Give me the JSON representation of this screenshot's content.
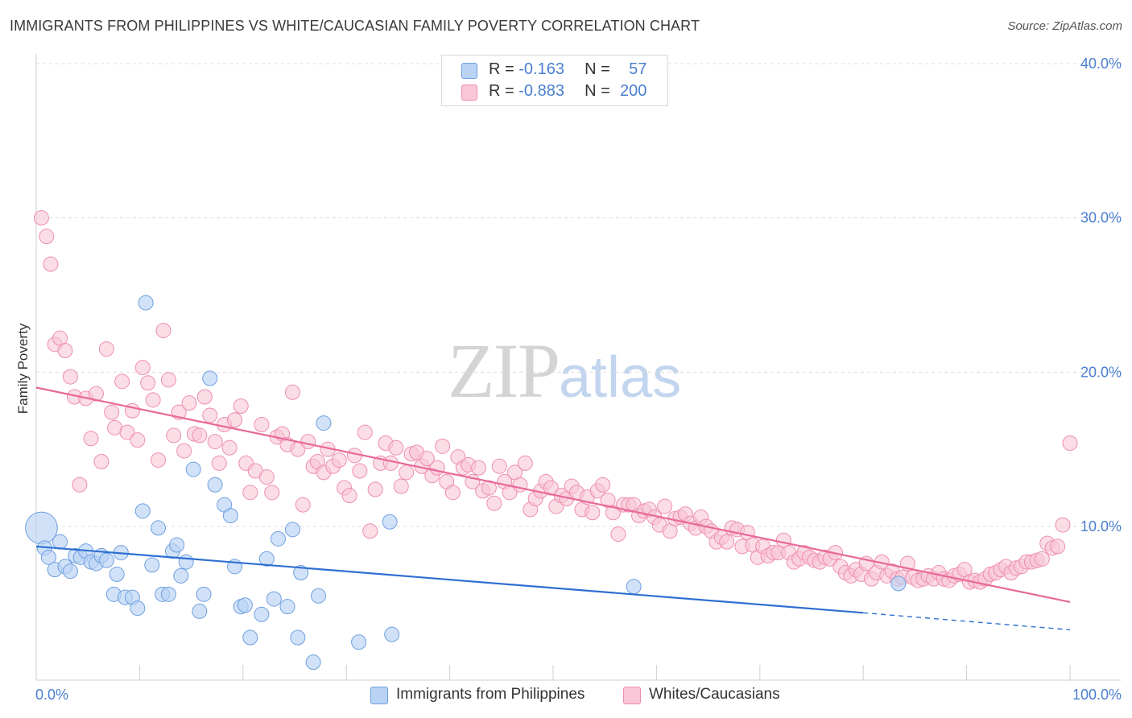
{
  "header": {
    "title": "IMMIGRANTS FROM PHILIPPINES VS WHITE/CAUCASIAN FAMILY POVERTY CORRELATION CHART",
    "source": "Source: ZipAtlas.com"
  },
  "watermark": {
    "zip": "ZIP",
    "atlas": "atlas"
  },
  "legend": {
    "series1": {
      "r_label": "R = ",
      "r_value": "-0.163",
      "n_label": "N = ",
      "n_value": "57"
    },
    "series2": {
      "r_label": "R = ",
      "r_value": "-0.883",
      "n_label": "N = ",
      "n_value": "200"
    }
  },
  "bottom_legend": {
    "series1": "Immigrants from Philippines",
    "series2": "Whites/Caucasians"
  },
  "colors": {
    "blue_fill": "#b9d3f5",
    "blue_stroke": "#6e9fe0",
    "blue_line": "#2f6fd1",
    "pink_fill": "#f8c6d6",
    "pink_stroke": "#ee8eae",
    "pink_line": "#e8699a",
    "tick": "#4a7fd0",
    "grid": "#dcdcdc"
  },
  "chart_data": {
    "type": "scatter",
    "title": "IMMIGRANTS FROM PHILIPPINES VS WHITE/CAUCASIAN FAMILY POVERTY CORRELATION CHART",
    "xlabel": "",
    "ylabel": "Family Poverty",
    "xlim": [
      0,
      100
    ],
    "ylim": [
      0,
      40
    ],
    "x_tick_labels": [
      "0.0%",
      "100.0%"
    ],
    "y_ticks": [
      10,
      20,
      30,
      40
    ],
    "y_tick_labels": [
      "10.0%",
      "20.0%",
      "30.0%",
      "40.0%"
    ],
    "legend_position": "top-center",
    "series": [
      {
        "name": "Immigrants from Philippines",
        "r": -0.163,
        "n": 57,
        "trend": {
          "x0": 0,
          "y0": 8.7,
          "x1": 80,
          "y1": 4.4,
          "dashed_to_x": 100,
          "dashed_to_y": 3.3
        },
        "points": [
          [
            0.5,
            9.9,
            2.2
          ],
          [
            0.8,
            8.6,
            1
          ],
          [
            1.2,
            8.0,
            1
          ],
          [
            1.8,
            7.2,
            1
          ],
          [
            2.3,
            9.0,
            1
          ],
          [
            2.8,
            7.4,
            1
          ],
          [
            3.3,
            7.1,
            1
          ],
          [
            3.8,
            8.1,
            1
          ],
          [
            4.3,
            8.0,
            1
          ],
          [
            4.8,
            8.4,
            1
          ],
          [
            5.3,
            7.7,
            1
          ],
          [
            5.8,
            7.6,
            1
          ],
          [
            6.3,
            8.1,
            1
          ],
          [
            6.8,
            7.8,
            1
          ],
          [
            7.5,
            5.6,
            1
          ],
          [
            7.8,
            6.9,
            1
          ],
          [
            8.2,
            8.3,
            1
          ],
          [
            8.6,
            5.4,
            1
          ],
          [
            9.3,
            5.4,
            1
          ],
          [
            9.8,
            4.7,
            1
          ],
          [
            10.3,
            11.0,
            1
          ],
          [
            10.6,
            24.5,
            1
          ],
          [
            11.2,
            7.5,
            1
          ],
          [
            11.8,
            9.9,
            1
          ],
          [
            12.2,
            5.6,
            1
          ],
          [
            12.8,
            5.6,
            1
          ],
          [
            13.2,
            8.4,
            1
          ],
          [
            13.6,
            8.8,
            1
          ],
          [
            14.0,
            6.8,
            1
          ],
          [
            14.5,
            7.7,
            1
          ],
          [
            15.2,
            13.7,
            1
          ],
          [
            15.8,
            4.5,
            1
          ],
          [
            16.2,
            5.6,
            1
          ],
          [
            16.8,
            19.6,
            1
          ],
          [
            17.3,
            12.7,
            1
          ],
          [
            18.2,
            11.4,
            1
          ],
          [
            18.8,
            10.7,
            1
          ],
          [
            19.2,
            7.4,
            1
          ],
          [
            19.8,
            4.8,
            1
          ],
          [
            20.2,
            4.9,
            1
          ],
          [
            20.7,
            2.8,
            1
          ],
          [
            21.8,
            4.3,
            1
          ],
          [
            22.3,
            7.9,
            1
          ],
          [
            23.0,
            5.3,
            1
          ],
          [
            23.4,
            9.2,
            1
          ],
          [
            24.3,
            4.8,
            1
          ],
          [
            24.8,
            9.8,
            1
          ],
          [
            25.3,
            2.8,
            1
          ],
          [
            25.6,
            7.0,
            1
          ],
          [
            26.8,
            1.2,
            1
          ],
          [
            27.3,
            5.5,
            1
          ],
          [
            27.8,
            16.7,
            1
          ],
          [
            31.2,
            2.5,
            1
          ],
          [
            34.2,
            10.3,
            1
          ],
          [
            34.4,
            3.0,
            1
          ],
          [
            57.8,
            6.1,
            1
          ],
          [
            83.4,
            6.3,
            1
          ]
        ]
      },
      {
        "name": "Whites/Caucasians",
        "r": -0.883,
        "n": 200,
        "trend": {
          "x0": 0,
          "y0": 19.0,
          "x1": 100,
          "y1": 5.1
        },
        "points": [
          [
            0.5,
            30.0
          ],
          [
            1.0,
            28.8
          ],
          [
            1.4,
            27.0
          ],
          [
            1.8,
            21.8
          ],
          [
            2.3,
            22.2
          ],
          [
            2.8,
            21.4
          ],
          [
            3.3,
            19.7
          ],
          [
            3.7,
            18.4
          ],
          [
            4.2,
            12.7
          ],
          [
            4.8,
            18.3
          ],
          [
            5.3,
            15.7
          ],
          [
            5.8,
            18.6
          ],
          [
            6.3,
            14.2
          ],
          [
            6.8,
            21.5
          ],
          [
            7.3,
            17.4
          ],
          [
            7.6,
            16.4
          ],
          [
            8.3,
            19.4
          ],
          [
            8.8,
            16.1
          ],
          [
            9.3,
            17.5
          ],
          [
            9.8,
            15.6
          ],
          [
            10.3,
            20.3
          ],
          [
            10.8,
            19.3
          ],
          [
            11.3,
            18.2
          ],
          [
            11.8,
            14.3
          ],
          [
            12.3,
            22.7
          ],
          [
            12.8,
            19.5
          ],
          [
            13.3,
            15.9
          ],
          [
            13.8,
            17.4
          ],
          [
            14.3,
            14.9
          ],
          [
            14.8,
            18.0
          ],
          [
            15.3,
            16.0
          ],
          [
            15.8,
            15.9
          ],
          [
            16.3,
            18.4
          ],
          [
            16.8,
            17.2
          ],
          [
            17.3,
            15.5
          ],
          [
            17.7,
            14.1
          ],
          [
            18.2,
            16.6
          ],
          [
            18.7,
            15.1
          ],
          [
            19.2,
            16.9
          ],
          [
            19.8,
            17.8
          ],
          [
            20.3,
            14.1
          ],
          [
            20.7,
            12.2
          ],
          [
            21.2,
            13.6
          ],
          [
            21.8,
            16.6
          ],
          [
            22.3,
            13.2
          ],
          [
            22.8,
            12.2
          ],
          [
            23.3,
            15.8
          ],
          [
            23.8,
            16.0
          ],
          [
            24.3,
            15.3
          ],
          [
            24.8,
            18.7
          ],
          [
            25.3,
            15.0
          ],
          [
            25.8,
            11.4
          ],
          [
            26.3,
            15.5
          ],
          [
            26.8,
            13.9
          ],
          [
            27.2,
            14.2
          ],
          [
            27.8,
            13.5
          ],
          [
            28.2,
            15.0
          ],
          [
            28.7,
            13.9
          ],
          [
            29.3,
            14.3
          ],
          [
            29.8,
            12.5
          ],
          [
            30.3,
            12.0
          ],
          [
            30.8,
            14.6
          ],
          [
            31.3,
            13.6
          ],
          [
            31.8,
            16.1
          ],
          [
            32.3,
            9.7
          ],
          [
            32.8,
            12.4
          ],
          [
            33.3,
            14.1
          ],
          [
            33.8,
            15.4
          ],
          [
            34.3,
            14.1
          ],
          [
            34.8,
            15.1
          ],
          [
            35.3,
            12.6
          ],
          [
            35.8,
            13.5
          ],
          [
            36.3,
            14.7
          ],
          [
            36.8,
            14.8
          ],
          [
            37.3,
            13.9
          ],
          [
            37.8,
            14.4
          ],
          [
            38.3,
            13.3
          ],
          [
            38.8,
            13.8
          ],
          [
            39.3,
            15.2
          ],
          [
            39.7,
            12.9
          ],
          [
            40.3,
            12.2
          ],
          [
            40.8,
            14.5
          ],
          [
            41.3,
            13.8
          ],
          [
            41.8,
            14.0
          ],
          [
            42.2,
            12.9
          ],
          [
            42.8,
            13.8
          ],
          [
            43.2,
            12.3
          ],
          [
            43.8,
            12.5
          ],
          [
            44.3,
            11.5
          ],
          [
            44.8,
            13.9
          ],
          [
            45.3,
            12.9
          ],
          [
            45.8,
            12.2
          ],
          [
            46.3,
            13.5
          ],
          [
            46.8,
            12.7
          ],
          [
            47.3,
            14.1
          ],
          [
            47.8,
            11.1
          ],
          [
            48.3,
            11.8
          ],
          [
            48.8,
            12.3
          ],
          [
            49.3,
            12.9
          ],
          [
            49.8,
            12.5
          ],
          [
            50.3,
            11.3
          ],
          [
            50.8,
            12.0
          ],
          [
            51.3,
            11.8
          ],
          [
            51.8,
            12.6
          ],
          [
            52.3,
            12.2
          ],
          [
            52.8,
            11.1
          ],
          [
            53.3,
            11.9
          ],
          [
            53.8,
            10.9
          ],
          [
            54.3,
            12.3
          ],
          [
            54.8,
            12.7
          ],
          [
            55.3,
            11.7
          ],
          [
            55.8,
            10.9
          ],
          [
            56.3,
            9.5
          ],
          [
            56.8,
            11.4
          ],
          [
            57.3,
            11.4
          ],
          [
            57.8,
            11.4
          ],
          [
            58.3,
            10.7
          ],
          [
            58.8,
            11.0
          ],
          [
            59.3,
            11.1
          ],
          [
            59.8,
            10.6
          ],
          [
            60.3,
            10.1
          ],
          [
            60.8,
            11.3
          ],
          [
            61.3,
            9.7
          ],
          [
            61.8,
            10.5
          ],
          [
            62.3,
            10.6
          ],
          [
            62.8,
            10.8
          ],
          [
            63.3,
            10.2
          ],
          [
            63.8,
            9.9
          ],
          [
            64.3,
            10.6
          ],
          [
            64.8,
            10.0
          ],
          [
            65.3,
            9.7
          ],
          [
            65.8,
            9.0
          ],
          [
            66.3,
            9.3
          ],
          [
            66.8,
            9.0
          ],
          [
            67.3,
            9.9
          ],
          [
            67.8,
            9.8
          ],
          [
            68.3,
            8.7
          ],
          [
            68.8,
            9.6
          ],
          [
            69.3,
            8.8
          ],
          [
            69.8,
            8.0
          ],
          [
            70.3,
            8.7
          ],
          [
            70.8,
            8.1
          ],
          [
            71.3,
            8.3
          ],
          [
            71.8,
            8.3
          ],
          [
            72.3,
            9.1
          ],
          [
            72.8,
            8.3
          ],
          [
            73.3,
            7.7
          ],
          [
            73.8,
            7.9
          ],
          [
            74.3,
            8.3
          ],
          [
            74.8,
            8.0
          ],
          [
            75.3,
            7.8
          ],
          [
            75.8,
            7.7
          ],
          [
            76.3,
            8.0
          ],
          [
            76.8,
            7.9
          ],
          [
            77.3,
            8.3
          ],
          [
            77.8,
            7.4
          ],
          [
            78.3,
            7.0
          ],
          [
            78.8,
            6.8
          ],
          [
            79.3,
            7.2
          ],
          [
            79.8,
            6.9
          ],
          [
            80.3,
            7.6
          ],
          [
            80.8,
            6.6
          ],
          [
            81.3,
            7.0
          ],
          [
            81.8,
            7.7
          ],
          [
            82.3,
            6.8
          ],
          [
            82.8,
            7.1
          ],
          [
            83.3,
            6.6
          ],
          [
            83.8,
            6.7
          ],
          [
            84.3,
            7.6
          ],
          [
            84.8,
            6.7
          ],
          [
            85.3,
            6.5
          ],
          [
            85.8,
            6.6
          ],
          [
            86.3,
            6.8
          ],
          [
            86.8,
            6.6
          ],
          [
            87.3,
            7.0
          ],
          [
            87.8,
            6.6
          ],
          [
            88.3,
            6.5
          ],
          [
            88.8,
            6.8
          ],
          [
            89.3,
            6.9
          ],
          [
            89.8,
            7.2
          ],
          [
            90.3,
            6.4
          ],
          [
            90.8,
            6.5
          ],
          [
            91.3,
            6.4
          ],
          [
            91.8,
            6.6
          ],
          [
            92.3,
            6.9
          ],
          [
            92.8,
            7.0
          ],
          [
            93.3,
            7.2
          ],
          [
            93.8,
            7.4
          ],
          [
            94.3,
            7.0
          ],
          [
            94.8,
            7.3
          ],
          [
            95.3,
            7.4
          ],
          [
            95.8,
            7.7
          ],
          [
            96.3,
            7.7
          ],
          [
            96.8,
            7.8
          ],
          [
            97.3,
            7.9
          ],
          [
            97.8,
            8.9
          ],
          [
            98.3,
            8.6
          ],
          [
            98.8,
            8.7
          ],
          [
            99.3,
            10.1
          ],
          [
            100.0,
            15.4
          ]
        ]
      }
    ]
  }
}
